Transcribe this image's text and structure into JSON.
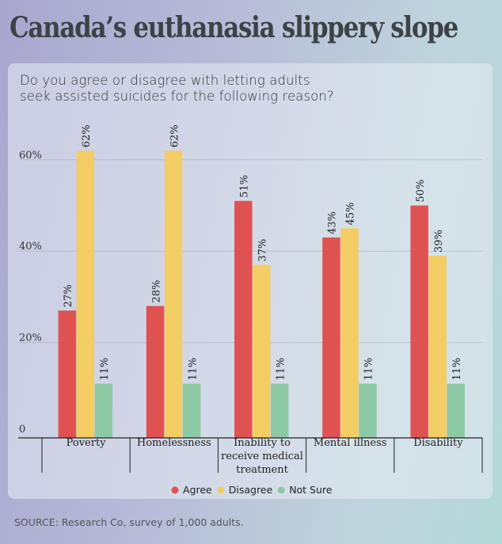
{
  "header": {
    "title": "Canada’s euthanasia slippery slope"
  },
  "chart_data": {
    "type": "bar",
    "title": "Do you agree or disagree with letting adults seek assisted suicides for the following reason?",
    "title_lines": [
      "Do you agree or disagree with letting adults",
      "seek assisted suicides for the following reason?"
    ],
    "categories": [
      [
        "Poverty"
      ],
      [
        "Homelessness"
      ],
      [
        "Inability to",
        "receive medical",
        "treatment"
      ],
      [
        "Mental illness"
      ],
      [
        "Disability"
      ]
    ],
    "series": [
      {
        "name": "Agree",
        "color": "#e05252",
        "values": [
          27,
          28,
          51,
          43,
          50
        ]
      },
      {
        "name": "Disagree",
        "color": "#f3cd64",
        "values": [
          62,
          62,
          37,
          45,
          39
        ]
      },
      {
        "name": "Not Sure",
        "color": "#8ec9a6",
        "values": [
          11,
          11,
          11,
          11,
          11
        ]
      }
    ],
    "yticks": [
      {
        "value": 0,
        "label": "0"
      },
      {
        "value": 20,
        "label": "20%"
      },
      {
        "value": 40,
        "label": "40%"
      },
      {
        "value": 60,
        "label": "60%"
      }
    ],
    "ylim": [
      0,
      70
    ],
    "grid": true,
    "legend_position": "bottom-center",
    "xlabel": "",
    "ylabel": ""
  },
  "footer": {
    "source": "SOURCE: Research Co, survey of 1,000 adults."
  }
}
